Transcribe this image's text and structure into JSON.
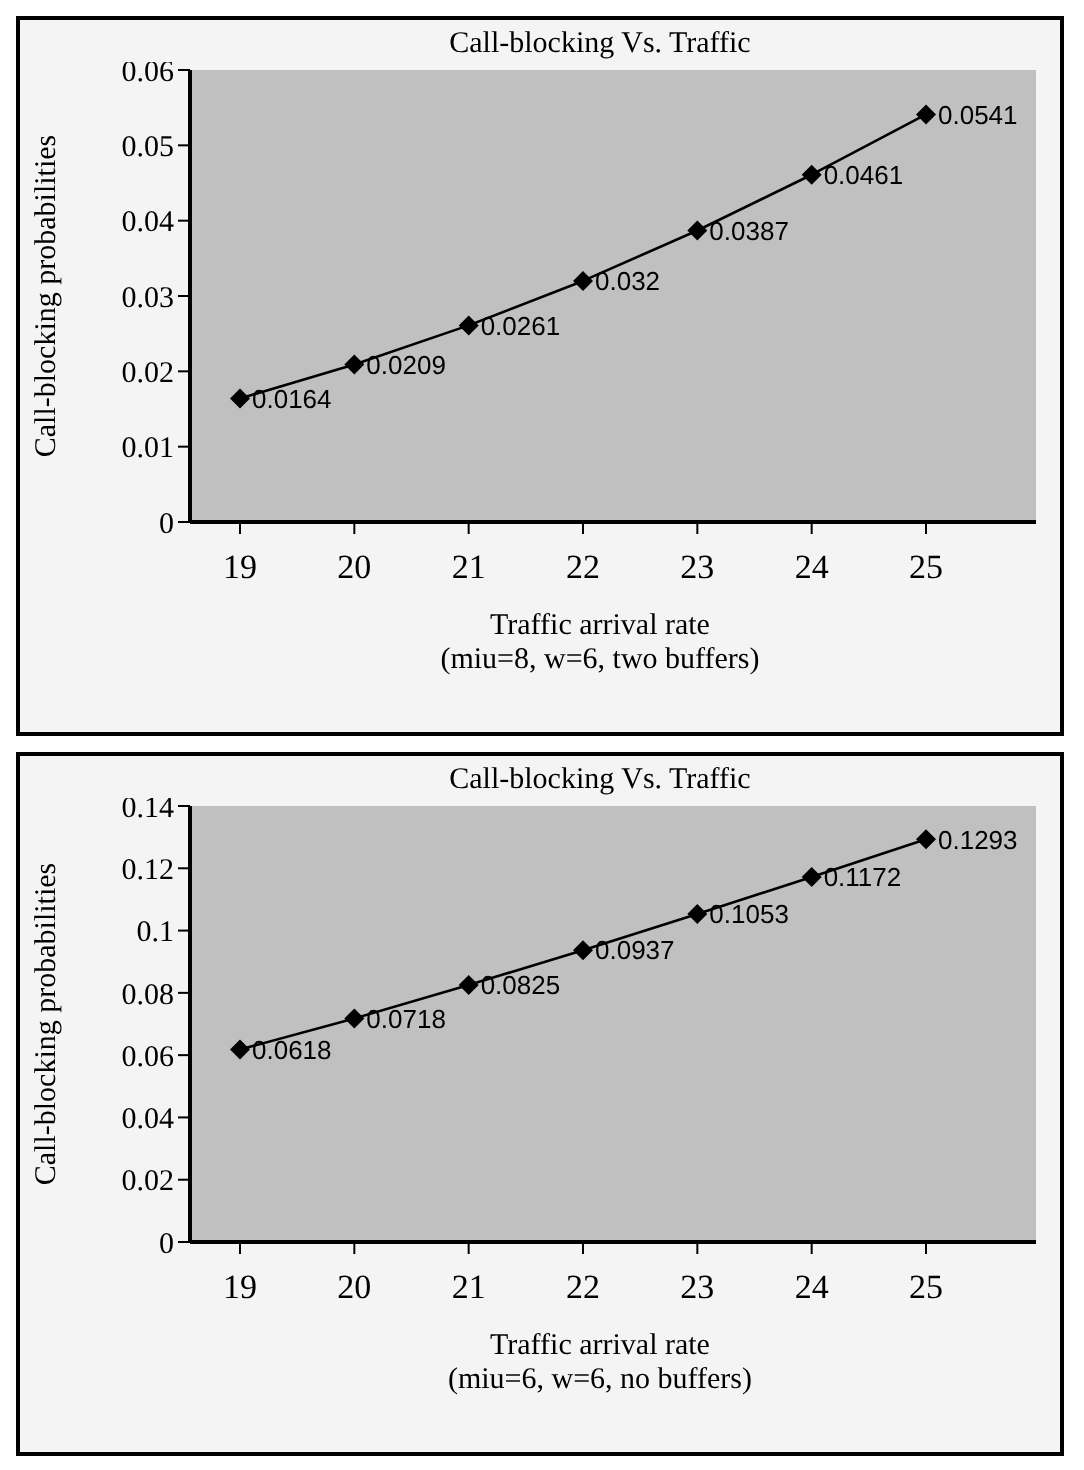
{
  "chart_data": [
    {
      "type": "line",
      "title": "Call-blocking Vs. Traffic",
      "xlabel": "Traffic arrival rate",
      "ylabel": "Call-blocking probabilities",
      "annotations": [
        "(miu=8, w=6, two buffers)"
      ],
      "categories": [
        "19",
        "20",
        "21",
        "22",
        "23",
        "24",
        "25"
      ],
      "series": [
        {
          "color": "#000000",
          "values": [
            0.0164,
            0.0209,
            0.0261,
            0.032,
            0.0387,
            0.0461,
            0.0541
          ]
        }
      ],
      "ylim": [
        0,
        0.06
      ],
      "yticks": [
        0,
        0.01,
        0.02,
        0.03,
        0.04,
        0.05,
        0.06
      ],
      "data_labels": true,
      "marker": "diamond",
      "line_style": "solid",
      "grid": false,
      "legend": false
    },
    {
      "type": "line",
      "title": "Call-blocking Vs. Traffic",
      "xlabel": "Traffic arrival rate",
      "ylabel": "Call-blocking probabilities",
      "annotations": [
        "(miu=6, w=6, no buffers)"
      ],
      "categories": [
        "19",
        "20",
        "21",
        "22",
        "23",
        "24",
        "25"
      ],
      "series": [
        {
          "color": "#000000",
          "values": [
            0.0618,
            0.0718,
            0.0825,
            0.0937,
            0.1053,
            0.1172,
            0.1293
          ]
        }
      ],
      "ylim": [
        0,
        0.14
      ],
      "yticks": [
        0,
        0.02,
        0.04,
        0.06,
        0.08,
        0.1,
        0.12,
        0.14
      ],
      "data_labels": true,
      "marker": "diamond",
      "line_style": "solid",
      "grid": false,
      "legend": false
    }
  ]
}
